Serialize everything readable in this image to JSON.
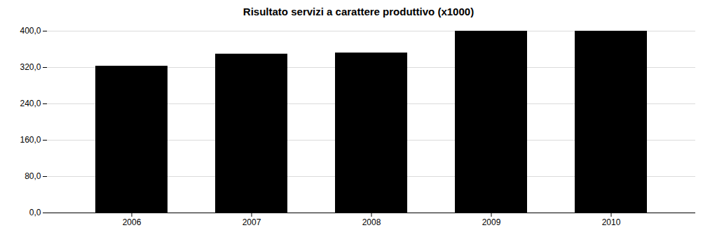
{
  "chart_data": {
    "type": "bar",
    "title": "Risultato servizi a carattere produttivo (x1000)",
    "categories": [
      "2006",
      "2007",
      "2008",
      "2009",
      "2010"
    ],
    "values": [
      322.916,
      349.533,
      352.0,
      400.0,
      400.0
    ],
    "ylim": [
      0,
      400
    ],
    "yticks": [
      {
        "value": 0,
        "label": "0,0"
      },
      {
        "value": 80,
        "label": "80,0"
      },
      {
        "value": 160,
        "label": "160,0"
      },
      {
        "value": 240,
        "label": "240,0"
      },
      {
        "value": 320,
        "label": "320,0"
      },
      {
        "value": 400,
        "label": "400,0"
      }
    ],
    "grid": true
  }
}
